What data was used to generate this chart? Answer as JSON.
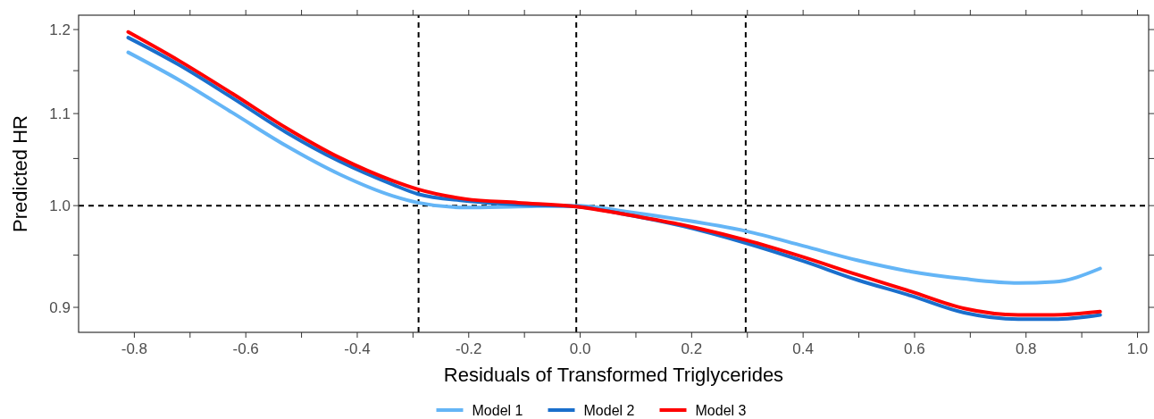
{
  "chart_data": {
    "type": "line",
    "xlabel": "Residuals of Transformed Triglycerides",
    "ylabel": "Predicted HR",
    "log": "y",
    "legend": "bottom",
    "grid": false,
    "line_style": "solid",
    "marker": "none",
    "xlim": [
      -0.9,
      1.02
    ],
    "ylim": [
      0.877,
      1.218
    ],
    "xticks": [
      -0.8,
      {
        "value": -0.7,
        "label": null
      },
      -0.6,
      {
        "value": -0.5,
        "label": null
      },
      -0.4,
      {
        "value": -0.3,
        "label": null
      },
      -0.2,
      {
        "value": -0.1,
        "label": null
      },
      {
        "value": 0,
        "label": "0.0"
      },
      {
        "value": 0.1,
        "label": null
      },
      0.2,
      {
        "value": 0.3,
        "label": null
      },
      0.4,
      {
        "value": 0.5,
        "label": null
      },
      0.6,
      {
        "value": 0.7,
        "label": null
      },
      0.8,
      {
        "value": 0.9,
        "label": null
      },
      {
        "value": 1,
        "label": "1.0"
      }
    ],
    "yticks": [
      {
        "value": 0.9,
        "label": "0.9"
      },
      {
        "value": 0.95,
        "label": null
      },
      {
        "value": 1,
        "label": "1.0"
      },
      {
        "value": 1.05,
        "label": null
      },
      1.1,
      {
        "value": 1.15,
        "label": null
      },
      1.2
    ],
    "x": [
      -0.811,
      -0.72,
      -0.624,
      -0.528,
      -0.432,
      -0.336,
      -0.291,
      -0.207,
      -0.111,
      -0.007,
      0.081,
      0.177,
      0.297,
      0.401,
      0.497,
      0.593,
      0.689,
      0.786,
      0.85,
      0.933
    ],
    "series": [
      {
        "name": "Model 1",
        "color": "#64b5f6",
        "values": [
          1.172,
          1.139,
          1.101,
          1.064,
          1.033,
          1.01,
          1.003,
          0.998,
          0.999,
          1.0,
          0.994,
          0.986,
          0.974,
          0.959,
          0.945,
          0.934,
          0.927,
          0.923,
          0.924,
          0.937
        ]
      },
      {
        "name": "Model 2",
        "color": "#1a6fcc",
        "values": [
          1.19,
          1.157,
          1.118,
          1.079,
          1.047,
          1.022,
          1.012,
          1.005,
          1.001,
          0.999,
          0.991,
          0.98,
          0.962,
          0.944,
          0.926,
          0.911,
          0.895,
          0.889,
          0.889,
          0.893
        ]
      },
      {
        "name": "Model 3",
        "color": "#ff0000",
        "values": [
          1.197,
          1.162,
          1.123,
          1.084,
          1.051,
          1.026,
          1.017,
          1.007,
          1.003,
          0.999,
          0.991,
          0.981,
          0.965,
          0.948,
          0.931,
          0.915,
          0.899,
          0.893,
          0.893,
          0.896
        ]
      }
    ],
    "ref_lines": [
      {
        "axis": "y",
        "value": 1.0,
        "line_style": "dashed"
      },
      {
        "axis": "x",
        "value": -0.29,
        "line_style": "dashed"
      },
      {
        "axis": "x",
        "value": -0.007,
        "line_style": "dashed"
      },
      {
        "axis": "x",
        "value": 0.297,
        "line_style": "dashed"
      }
    ]
  }
}
